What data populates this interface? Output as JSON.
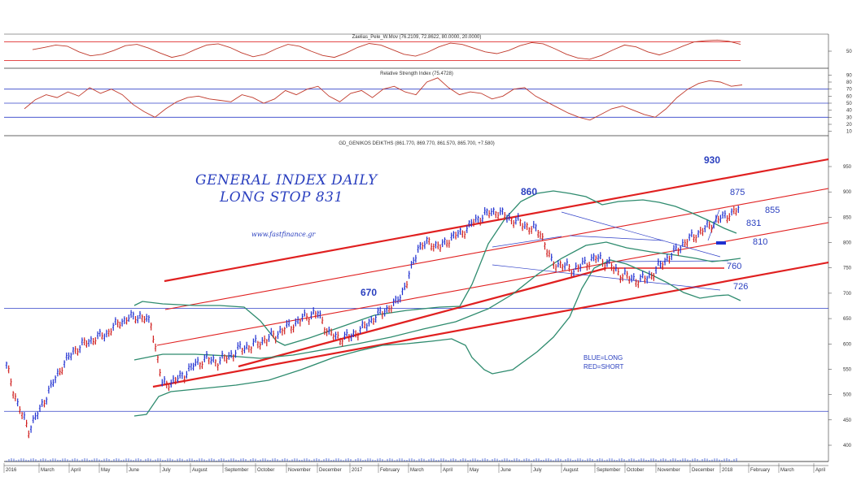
{
  "chart_data": [
    {
      "type": "line",
      "title": "Zaelias_Pele_W.Mov (76.2109, 72.8622, 80.0000, 20.0000)",
      "levels": [
        80,
        20
      ],
      "yticks": [
        50
      ],
      "colors": {
        "line": "#c0392b",
        "levels": "#e03030"
      },
      "series": [
        {
          "values": [
            55,
            62,
            70,
            66,
            48,
            35,
            40,
            52,
            68,
            72,
            60,
            44,
            30,
            38,
            55,
            70,
            74,
            62,
            45,
            32,
            40,
            58,
            72,
            66,
            50,
            36,
            30,
            44,
            62,
            75,
            70,
            55,
            40,
            34,
            46,
            64,
            76,
            72,
            60,
            48,
            42,
            52,
            68,
            78,
            74,
            58,
            40,
            28,
            24,
            36,
            54,
            70,
            64,
            48,
            38,
            50,
            66,
            80,
            84,
            86,
            82,
            72
          ]
        }
      ]
    },
    {
      "type": "line",
      "title": "Relative Strength Index (75.4728)",
      "levels": [
        70,
        50,
        30
      ],
      "yticks": [
        90,
        80,
        70,
        60,
        50,
        40,
        30,
        20,
        10
      ],
      "ylim": [
        5,
        95
      ],
      "colors": {
        "line": "#c0392b",
        "levels": "#3040c8"
      },
      "series": [
        {
          "values": [
            42,
            55,
            62,
            58,
            66,
            60,
            72,
            64,
            70,
            62,
            48,
            38,
            30,
            42,
            52,
            58,
            60,
            56,
            54,
            52,
            62,
            58,
            50,
            56,
            68,
            62,
            70,
            74,
            60,
            52,
            64,
            68,
            58,
            70,
            74,
            66,
            62,
            80,
            86,
            72,
            62,
            66,
            64,
            56,
            60,
            70,
            72,
            60,
            52,
            44,
            36,
            30,
            26,
            34,
            42,
            46,
            40,
            34,
            30,
            42,
            58,
            70,
            78,
            82,
            80,
            74,
            76
          ]
        }
      ]
    },
    {
      "type": "line",
      "title": "GD_GENIKOS DEIKTHS (861.770, 869.770, 861.570, 865.700, +7.580)",
      "yticks": [
        950,
        900,
        850,
        800,
        750,
        700,
        650,
        600,
        550,
        500,
        450,
        400
      ],
      "ylim": [
        375,
        1000
      ],
      "xlabels": [
        "2016",
        "March",
        "April",
        "May",
        "June",
        "July",
        "August",
        "September",
        "October",
        "November",
        "December",
        "2017",
        "February",
        "March",
        "April",
        "May",
        "June",
        "July",
        "August",
        "September",
        "October",
        "November",
        "December",
        "2018",
        "February",
        "March",
        "April"
      ],
      "horizontal_levels": [
        670,
        467
      ],
      "series": [
        {
          "values": [
            556,
            480,
            430,
            470,
            515,
            555,
            585,
            600,
            610,
            620,
            640,
            650,
            655,
            640,
            520,
            525,
            540,
            560,
            570,
            565,
            575,
            590,
            596,
            605,
            615,
            630,
            640,
            655,
            660,
            620,
            610,
            615,
            630,
            650,
            665,
            680,
            720,
            790,
            800,
            790,
            810,
            820,
            840,
            855,
            862,
            850,
            840,
            830,
            820,
            760,
            755,
            745,
            758,
            770,
            760,
            740,
            730,
            725,
            735,
            760,
            780,
            800,
            815,
            830,
            845,
            856,
            866
          ]
        }
      ],
      "annotations": [
        "GENERAL INDEX DAILY",
        "LONG STOP 831",
        "www.fastfinance.gr",
        "670",
        "860",
        "930",
        "875",
        "855",
        "831",
        "810",
        "760",
        "726",
        "BLUE=LONG",
        "RED=SHORT"
      ],
      "colors": {
        "price_up": "#1f2fd0",
        "price_down": "#d02020",
        "channel": "#e02020",
        "bollinger": "#2e8b6e",
        "levels": "#3040c8"
      }
    }
  ]
}
